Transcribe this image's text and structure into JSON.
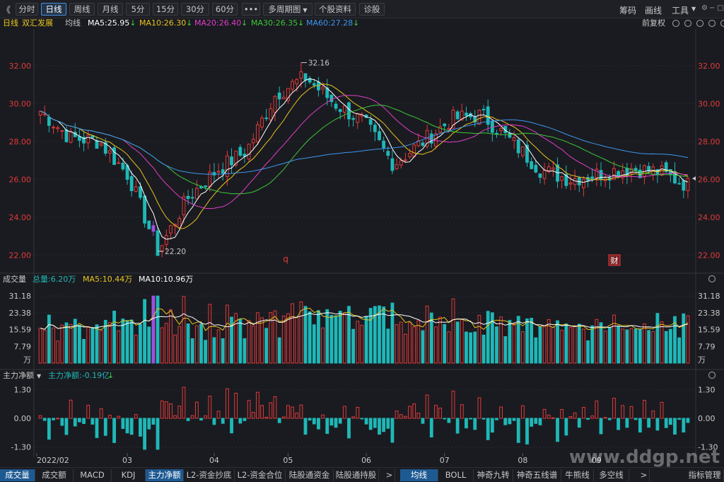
{
  "toolbar": {
    "back_glyph": "《",
    "buttons": [
      "分时",
      "日线",
      "周线",
      "月线",
      "5分",
      "15分",
      "30分",
      "60分",
      "•••",
      "多周期图",
      "个股资料",
      "诊股"
    ],
    "active": "日线",
    "dropdown_arrow": "▼",
    "right": [
      "筹码",
      "画线",
      "工具"
    ],
    "tools_arrow": "▼"
  },
  "price_panel": {
    "period": "日线",
    "stock_name": "双汇发展",
    "ma_label": "均线",
    "ma": [
      {
        "label": "MA5:25.95",
        "color": "#ffffff"
      },
      {
        "label": "MA10:26.30",
        "color": "#e8c41e"
      },
      {
        "label": "MA20:26.40",
        "color": "#e03cc8"
      },
      {
        "label": "MA30:26.35",
        "color": "#3cc83c"
      },
      {
        "label": "MA60:27.28",
        "color": "#3c96f0"
      }
    ],
    "down_arrow": "↓",
    "adjust": "前复权",
    "y_ticks": [
      "32.00",
      "30.00",
      "28.00",
      "26.00",
      "24.00",
      "22.00"
    ],
    "high_label": "32.16",
    "low_label": "22.20",
    "marker_q": "q",
    "marker_cai": "财"
  },
  "volume_panel": {
    "title": "成交量",
    "total": "总量:6.20万",
    "ma5": "MA5:10.44万",
    "ma10": "MA10:10.96万",
    "down_arrow": "↓",
    "y_ticks": [
      "31.18",
      "23.38",
      "15.59",
      "7.79",
      "万"
    ]
  },
  "flow_panel": {
    "title": "主力净额",
    "dropdown_arrow": "▼",
    "value": "主力净额:-0.19亿",
    "down_arrow": "↓",
    "y_ticks": [
      "1.30",
      "0.00",
      "-1.30"
    ]
  },
  "x_axis": {
    "labels": [
      "2022/02",
      "03",
      "04",
      "05",
      "06",
      "07",
      "08",
      "09"
    ]
  },
  "tabs_left": [
    "成交量",
    "成交额",
    "MACD",
    "KDJ",
    "主力净额",
    "L2-资金抄底",
    "L2-资金合位",
    "陆股通资金",
    "陆股通持股"
  ],
  "tabs_left_active": [
    "成交量",
    "主力净额"
  ],
  "tabs_right": [
    "均线",
    "BOLL",
    "神奇九转",
    "神奇五线谱",
    "牛熊线",
    "多空线"
  ],
  "tabs_right_active": "均线",
  "tab_arrow": ">",
  "tab_end": "指标管理",
  "watermark": "www.ddgp.net",
  "colors": {
    "up": "#e03a3a",
    "down": "#1fb8b8",
    "highlight": "#a050e0",
    "accent": "#4a8fd8"
  },
  "chart_data": {
    "type": "candlestick",
    "title": "",
    "ylim_price": [
      21.3,
      33.0
    ],
    "ylim_volume": [
      0,
      35.2
    ],
    "ylim_flow": [
      -1.5,
      1.5
    ],
    "monthly_anchors": [
      {
        "month": "2022/02",
        "close": 29.6
      },
      {
        "month": "02-mid",
        "close": 28.2
      },
      {
        "month": "03-start",
        "close": 28.0
      },
      {
        "month": "03-mid",
        "close": 26.2
      },
      {
        "month": "03-low",
        "close": 22.2
      },
      {
        "month": "03-end",
        "close": 25.0
      },
      {
        "month": "04-start",
        "close": 26.5
      },
      {
        "month": "04-mid",
        "close": 27.5
      },
      {
        "month": "04-end",
        "close": 30.5
      },
      {
        "month": "05-start",
        "close": 31.4
      },
      {
        "month": "05-mid",
        "close": 30.0
      },
      {
        "month": "05-end",
        "close": 29.0
      },
      {
        "month": "06-start",
        "close": 26.8
      },
      {
        "month": "06-mid",
        "close": 28.0
      },
      {
        "month": "06-end",
        "close": 29.2
      },
      {
        "month": "07-start",
        "close": 29.4
      },
      {
        "month": "07-mid",
        "close": 28.0
      },
      {
        "month": "07-end",
        "close": 26.5
      },
      {
        "month": "08-start",
        "close": 26.0
      },
      {
        "month": "08-mid",
        "close": 26.3
      },
      {
        "month": "08-end",
        "close": 26.6
      },
      {
        "month": "09-start",
        "close": 26.4
      },
      {
        "month": "09-last",
        "close": 25.7
      }
    ],
    "high": 32.16,
    "low": 22.2,
    "last_ma": {
      "MA5": 25.95,
      "MA10": 26.3,
      "MA20": 26.4,
      "MA30": 26.35,
      "MA60": 27.28
    },
    "volume_max": 31.18,
    "flow_last": -0.19
  }
}
